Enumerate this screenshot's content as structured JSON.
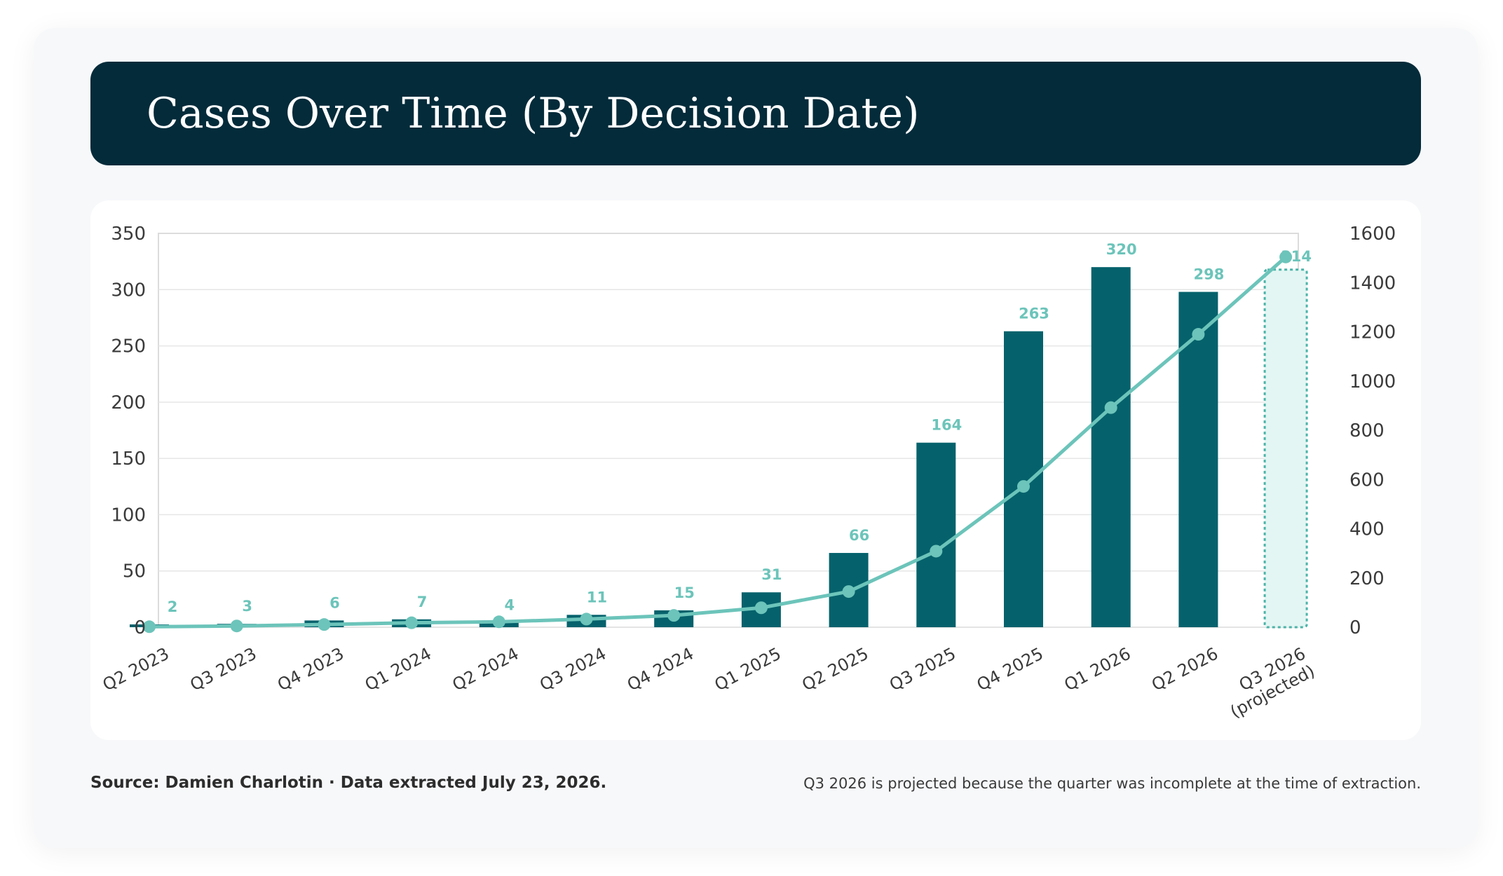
{
  "header": {
    "title": "Cases Over Time (By Decision Date)"
  },
  "footer": {
    "source": "Source: Damien Charlotin · Data extracted July 23, 2026.",
    "note": "Q3 2026 is projected because the quarter was incomplete at the time of extraction."
  },
  "colors": {
    "header_bg": "#032b3a",
    "bar": "#05626c",
    "line": "#6cc4ba",
    "projected_fill": "#e3f6f3",
    "projected_border": "#4bb3a8"
  },
  "chart_data": {
    "type": "bar",
    "title": "Cases Over Time (By Decision Date)",
    "xlabel": "",
    "ylabel": "",
    "y2label": "",
    "categories": [
      [
        "Q2 2023"
      ],
      [
        "Q3 2023"
      ],
      [
        "Q4 2023"
      ],
      [
        "Q1 2024"
      ],
      [
        "Q2 2024"
      ],
      [
        "Q3 2024"
      ],
      [
        "Q4 2024"
      ],
      [
        "Q1 2025"
      ],
      [
        "Q2 2025"
      ],
      [
        "Q3 2025"
      ],
      [
        "Q4 2025"
      ],
      [
        "Q1 2026"
      ],
      [
        "Q2 2026"
      ],
      [
        "Q3 2026",
        "(projected)"
      ]
    ],
    "series": [
      {
        "type": "bar",
        "axis": "left",
        "values": [
          2,
          3,
          6,
          7,
          4,
          11,
          15,
          31,
          66,
          164,
          263,
          320,
          298,
          314
        ],
        "projected_index": 13
      },
      {
        "type": "line",
        "axis": "right",
        "values": [
          2,
          5,
          11,
          18,
          22,
          33,
          48,
          79,
          145,
          309,
          572,
          892,
          1190,
          1504
        ]
      }
    ],
    "ylim": [
      0,
      350
    ],
    "yticks": [
      0,
      50,
      100,
      150,
      200,
      250,
      300,
      350
    ],
    "y2lim": [
      0,
      1600
    ],
    "y2ticks": [
      0,
      200,
      400,
      600,
      800,
      1000,
      1200,
      1400,
      1600
    ],
    "grid": true,
    "legend": "none"
  }
}
